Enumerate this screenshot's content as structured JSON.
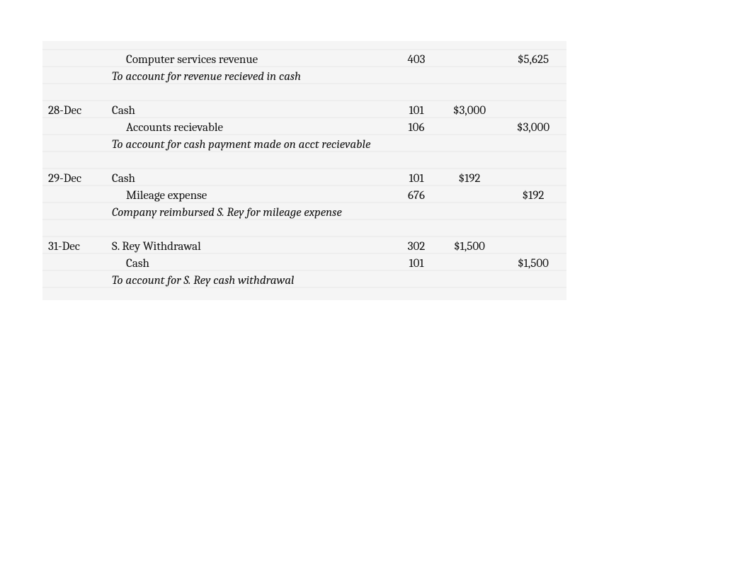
{
  "colors": {
    "page_bg": "#ffffff",
    "block_bg": "#f5f5f5",
    "stripe": "#eeeeee",
    "text": "#111111"
  },
  "font_size_pt": 13,
  "entries": {
    "e0": {
      "date": "",
      "lines": [
        {
          "desc": "Computer services revenue",
          "indent": 1,
          "acct": "403",
          "debit": "",
          "credit": "$5,625"
        }
      ],
      "memo": "To account for revenue recieved in cash"
    },
    "e1": {
      "date": "28-Dec",
      "lines": [
        {
          "desc": "Cash",
          "indent": 0,
          "acct": "101",
          "debit": "$3,000",
          "credit": ""
        },
        {
          "desc": "Accounts recievable",
          "indent": 1,
          "acct": "106",
          "debit": "",
          "credit": "$3,000"
        }
      ],
      "memo": "To account for cash payment made on acct recievable"
    },
    "e2": {
      "date": "29-Dec",
      "lines": [
        {
          "desc": "Cash",
          "indent": 0,
          "acct": "101",
          "debit": "$192",
          "credit": ""
        },
        {
          "desc": "Mileage expense",
          "indent": 1,
          "acct": "676",
          "debit": "",
          "credit": "$192"
        }
      ],
      "memo": "Company reimbursed S. Rey for mileage expense"
    },
    "e3": {
      "date": "31-Dec",
      "lines": [
        {
          "desc": "S. Rey Withdrawal",
          "indent": 0,
          "acct": "302",
          "debit": "$1,500",
          "credit": ""
        },
        {
          "desc": "Cash",
          "indent": 1,
          "acct": "101",
          "debit": "",
          "credit": "$1,500"
        }
      ],
      "memo": "To account for S. Rey cash withdrawal"
    }
  }
}
